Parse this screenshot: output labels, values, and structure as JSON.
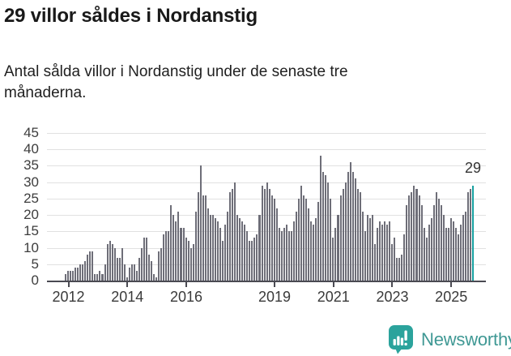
{
  "header": {
    "title": "29 villor såldes i Nordanstig",
    "subtitle": "Antal sålda villor i Nordanstig under de senaste tre månaderna."
  },
  "chart_data": {
    "type": "bar",
    "title": "29 villor såldes i Nordanstig",
    "xlabel": "",
    "ylabel": "",
    "frequency": "monthly",
    "x_start": "2011-12",
    "x_end": "2025-10",
    "ylim": [
      0,
      45
    ],
    "grid": "horizontal",
    "y_ticks": [
      0,
      5,
      10,
      15,
      20,
      25,
      30,
      35,
      40,
      45
    ],
    "x_tick_years": [
      2012,
      2014,
      2016,
      2019,
      2021,
      2023,
      2025
    ],
    "bar_color": "#6e6e78",
    "highlight_color": "#17a1a1",
    "highlight_last_value": 29,
    "highlight_label": "29",
    "values": [
      2,
      3,
      3,
      3,
      4,
      4,
      5,
      5,
      6,
      8,
      9,
      9,
      2,
      2,
      3,
      2,
      5,
      11,
      12,
      11,
      10,
      7,
      7,
      10,
      5,
      1,
      4,
      5,
      5,
      3,
      7,
      10,
      13,
      13,
      8,
      6,
      2,
      1,
      9,
      10,
      14,
      15,
      15,
      23,
      20,
      18,
      21,
      16,
      16,
      13,
      12,
      10,
      11,
      21,
      27,
      35,
      26,
      26,
      22,
      20,
      20,
      19,
      18,
      16,
      12,
      17,
      21,
      27,
      28,
      30,
      20,
      19,
      18,
      17,
      15,
      12,
      12,
      13,
      14,
      20,
      29,
      28,
      30,
      28,
      26,
      25,
      22,
      16,
      15,
      16,
      17,
      15,
      15,
      18,
      21,
      25,
      29,
      26,
      25,
      22,
      18,
      17,
      19,
      24,
      38,
      33,
      32,
      30,
      25,
      13,
      16,
      20,
      26,
      28,
      30,
      33,
      36,
      33,
      31,
      28,
      27,
      21,
      15,
      20,
      19,
      20,
      11,
      16,
      18,
      17,
      18,
      17,
      18,
      11,
      13,
      7,
      7,
      8,
      14,
      23,
      26,
      27,
      29,
      28,
      26,
      23,
      16,
      13,
      17,
      19,
      23,
      27,
      25,
      23,
      20,
      16,
      16,
      19,
      18,
      16,
      14,
      17,
      20,
      21,
      27,
      28,
      29
    ]
  },
  "annotation": {
    "value_label": "29"
  },
  "footer": {
    "brand": "Newsworthy",
    "brand_color": "#3f9894",
    "icon": "bar-chart-speech-bubble-icon",
    "icon_color": "#2ba39c"
  }
}
